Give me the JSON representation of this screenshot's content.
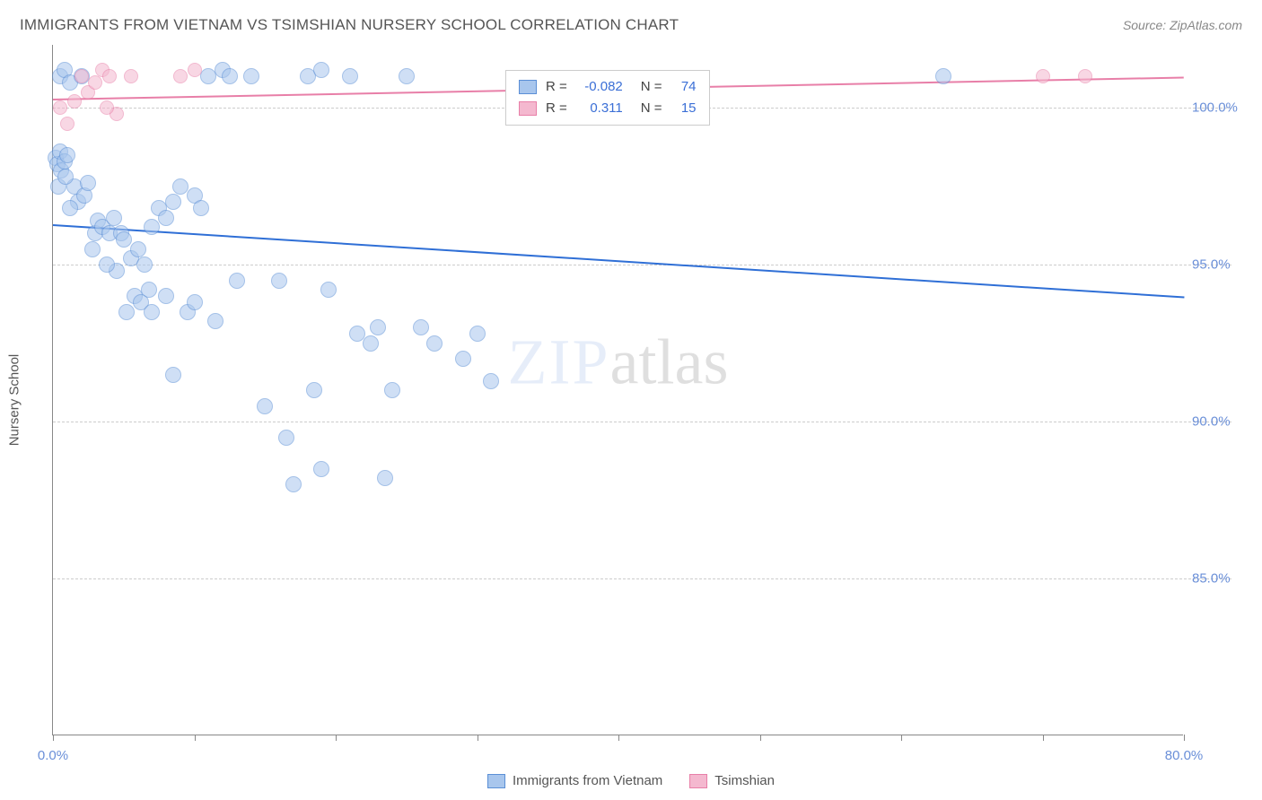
{
  "title": "IMMIGRANTS FROM VIETNAM VS TSIMSHIAN NURSERY SCHOOL CORRELATION CHART",
  "source": "Source: ZipAtlas.com",
  "y_axis_label": "Nursery School",
  "watermark": {
    "part1": "ZIP",
    "part2": "atlas"
  },
  "chart": {
    "type": "scatter",
    "xlim": [
      0,
      80
    ],
    "ylim": [
      80,
      102
    ],
    "x_ticks": [
      0,
      10,
      20,
      30,
      40,
      50,
      60,
      70,
      80
    ],
    "x_tick_labels_shown": {
      "0": "0.0%",
      "80": "80.0%"
    },
    "y_gridlines": [
      85,
      90,
      95,
      100
    ],
    "y_tick_labels": {
      "85": "85.0%",
      "90": "90.0%",
      "95": "95.0%",
      "100": "100.0%"
    },
    "background_color": "#ffffff",
    "grid_color": "#cccccc",
    "axis_color": "#888888",
    "tick_label_color": "#6a8fd8"
  },
  "series": [
    {
      "name": "Immigrants from Vietnam",
      "color_fill": "#a8c6ed",
      "color_stroke": "#5b8fd6",
      "fill_opacity": 0.55,
      "marker_radius": 9,
      "R": "-0.082",
      "N": "74",
      "trend": {
        "x1": 0,
        "y1": 96.3,
        "x2": 80,
        "y2": 94.0,
        "color": "#2f6fd6",
        "width": 2
      },
      "points": [
        [
          0.2,
          98.4
        ],
        [
          0.3,
          98.2
        ],
        [
          0.5,
          98.6
        ],
        [
          0.6,
          98.0
        ],
        [
          0.8,
          98.3
        ],
        [
          1.0,
          98.5
        ],
        [
          0.5,
          101.0
        ],
        [
          0.8,
          101.2
        ],
        [
          1.2,
          100.8
        ],
        [
          2.0,
          101.0
        ],
        [
          1.5,
          97.5
        ],
        [
          1.8,
          97.0
        ],
        [
          2.2,
          97.2
        ],
        [
          2.5,
          97.6
        ],
        [
          3.0,
          96.0
        ],
        [
          3.2,
          96.4
        ],
        [
          3.5,
          96.2
        ],
        [
          4.0,
          96.0
        ],
        [
          4.3,
          96.5
        ],
        [
          4.8,
          96.0
        ],
        [
          5.0,
          95.8
        ],
        [
          5.5,
          95.2
        ],
        [
          6.0,
          95.5
        ],
        [
          6.5,
          95.0
        ],
        [
          7.0,
          96.2
        ],
        [
          7.5,
          96.8
        ],
        [
          8.0,
          96.5
        ],
        [
          8.5,
          97.0
        ],
        [
          9.0,
          97.5
        ],
        [
          10.0,
          97.2
        ],
        [
          11.0,
          101.0
        ],
        [
          12.0,
          101.2
        ],
        [
          14.0,
          101.0
        ],
        [
          10.5,
          96.8
        ],
        [
          12.5,
          101.0
        ],
        [
          5.2,
          93.5
        ],
        [
          5.8,
          94.0
        ],
        [
          6.2,
          93.8
        ],
        [
          7.0,
          93.5
        ],
        [
          8.0,
          94.0
        ],
        [
          9.5,
          93.5
        ],
        [
          10.0,
          93.8
        ],
        [
          11.5,
          93.2
        ],
        [
          13.0,
          94.5
        ],
        [
          16.0,
          94.5
        ],
        [
          18.0,
          101.0
        ],
        [
          19.0,
          101.2
        ],
        [
          19.5,
          94.2
        ],
        [
          21.0,
          101.0
        ],
        [
          21.5,
          92.8
        ],
        [
          22.5,
          92.5
        ],
        [
          23.0,
          93.0
        ],
        [
          25.0,
          101.0
        ],
        [
          26.0,
          93.0
        ],
        [
          27.0,
          92.5
        ],
        [
          29.0,
          92.0
        ],
        [
          30.0,
          92.8
        ],
        [
          31.0,
          91.3
        ],
        [
          24.0,
          91.0
        ],
        [
          18.5,
          91.0
        ],
        [
          16.5,
          89.5
        ],
        [
          17.0,
          88.0
        ],
        [
          19.0,
          88.5
        ],
        [
          23.5,
          88.2
        ],
        [
          15.0,
          90.5
        ],
        [
          8.5,
          91.5
        ],
        [
          4.5,
          94.8
        ],
        [
          3.8,
          95.0
        ],
        [
          6.8,
          94.2
        ],
        [
          2.8,
          95.5
        ],
        [
          1.2,
          96.8
        ],
        [
          0.4,
          97.5
        ],
        [
          63.0,
          101.0
        ],
        [
          0.9,
          97.8
        ]
      ]
    },
    {
      "name": "Tsimshian",
      "color_fill": "#f4b8cf",
      "color_stroke": "#e87fa8",
      "fill_opacity": 0.55,
      "marker_radius": 8,
      "R": "0.311",
      "N": "15",
      "trend": {
        "x1": 0,
        "y1": 100.3,
        "x2": 80,
        "y2": 101.0,
        "color": "#e87fa8",
        "width": 2
      },
      "points": [
        [
          0.5,
          100.0
        ],
        [
          1.0,
          99.5
        ],
        [
          1.5,
          100.2
        ],
        [
          2.0,
          101.0
        ],
        [
          2.5,
          100.5
        ],
        [
          3.0,
          100.8
        ],
        [
          3.5,
          101.2
        ],
        [
          4.0,
          101.0
        ],
        [
          4.5,
          99.8
        ],
        [
          5.5,
          101.0
        ],
        [
          9.0,
          101.0
        ],
        [
          10.0,
          101.2
        ],
        [
          70.0,
          101.0
        ],
        [
          73.0,
          101.0
        ],
        [
          3.8,
          100.0
        ]
      ]
    }
  ],
  "legend_box": {
    "r_label": "R =",
    "n_label": "N ="
  },
  "bottom_legend": [
    {
      "label": "Immigrants from Vietnam",
      "fill": "#a8c6ed",
      "stroke": "#5b8fd6"
    },
    {
      "label": "Tsimshian",
      "fill": "#f4b8cf",
      "stroke": "#e87fa8"
    }
  ]
}
